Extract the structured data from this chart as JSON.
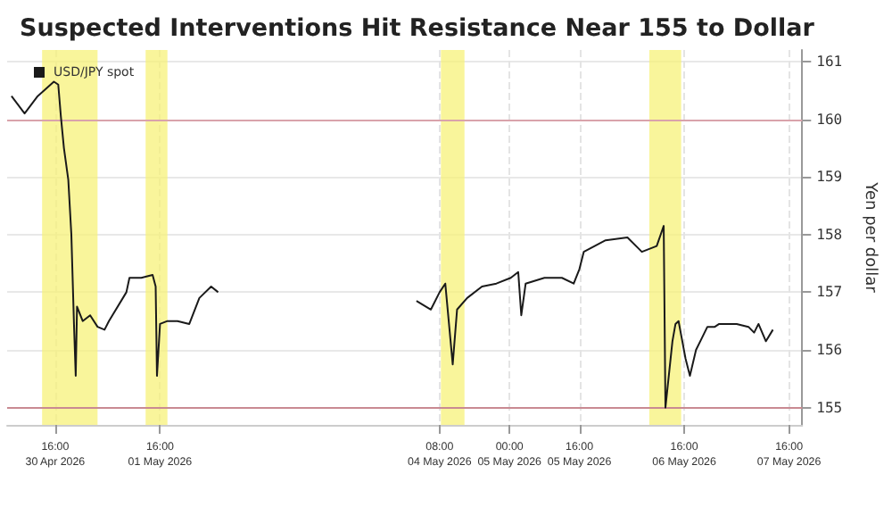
{
  "chart_data": {
    "type": "line",
    "title": "Suspected Interventions Hit Resistance Near 155 to Dollar",
    "ylabel": "Yen per dollar",
    "legend": "top left",
    "grid": true,
    "marker": "none",
    "line_style": "solid",
    "xlim": [
      "2026-04-30T05:00",
      "2026-05-07T19:00"
    ],
    "ylim": [
      154.7,
      161.2
    ],
    "yticks": [
      155,
      156,
      157,
      158,
      159,
      160,
      161
    ],
    "xticks": [
      {
        "value": "2026-04-30T16:00",
        "label": "16:00\n30 Apr 2026"
      },
      {
        "value": "2026-05-01T16:00",
        "label": "16:00\n01 May 2026"
      },
      {
        "value": "2026-05-04T08:00",
        "label": "08:00\n04 May 2026"
      },
      {
        "value": "2026-05-05T00:00",
        "label": "00:00\n05 May 2026"
      },
      {
        "value": "2026-05-05T16:00",
        "label": "16:00\n05 May 2026"
      },
      {
        "value": "2026-05-06T16:00",
        "label": "16:00\n06 May 2026"
      },
      {
        "value": "2026-05-07T16:00",
        "label": "16:00\n07 May 2026"
      }
    ],
    "series": [
      {
        "name": "USD/JPY spot",
        "color": "#1a1a1a",
        "x": [
          "2026-04-30T06:00",
          "2026-04-30T09:00",
          "2026-04-30T12:00",
          "2026-04-30T15:42",
          "2026-04-30T16:42",
          "2026-04-30T17:18",
          "2026-04-30T18:00",
          "2026-04-30T19:00",
          "2026-04-30T19:42",
          "2026-04-30T20:18",
          "2026-04-30T20:42",
          "2026-04-30T21:00",
          "2026-04-30T22:18",
          "2026-05-01T00:00",
          "2026-05-01T01:42",
          "2026-05-01T03:18",
          "2026-05-01T04:18",
          "2026-05-01T08:18",
          "2026-05-01T09:00",
          "2026-05-01T11:42",
          "2026-05-01T14:18",
          "2026-05-01T15:00",
          "2026-05-01T15:18",
          "2026-05-01T16:00",
          "2026-05-01T17:42",
          "2026-05-01T20:00",
          "2026-05-01T22:42",
          "2026-05-02T01:00",
          "2026-05-02T03:42",
          "2026-05-02T05:18",
          "2026-05-03T12:00",
          "2026-05-04T02:42",
          "2026-05-04T06:00",
          "2026-05-04T08:00",
          "2026-05-04T09:18",
          "2026-05-04T11:00",
          "2026-05-04T12:00",
          "2026-05-04T14:18",
          "2026-05-04T17:42",
          "2026-05-04T21:00",
          "2026-05-05T00:18",
          "2026-05-05T02:00",
          "2026-05-05T02:42",
          "2026-05-05T03:42",
          "2026-05-05T08:00",
          "2026-05-05T12:00",
          "2026-05-05T14:42",
          "2026-05-05T16:00",
          "2026-05-05T17:00",
          "2026-05-05T22:00",
          "2026-05-06T03:00",
          "2026-05-06T06:18",
          "2026-05-06T09:42",
          "2026-05-06T11:18",
          "2026-05-06T11:42",
          "2026-05-06T13:18",
          "2026-05-06T14:00",
          "2026-05-06T14:42",
          "2026-05-06T16:18",
          "2026-05-06T17:18",
          "2026-05-06T18:42",
          "2026-05-06T20:00",
          "2026-05-06T21:18",
          "2026-05-06T23:00",
          "2026-05-07T00:00",
          "2026-05-07T04:00",
          "2026-05-07T06:42",
          "2026-05-07T08:00",
          "2026-05-07T09:00",
          "2026-05-07T10:42",
          "2026-05-07T12:18"
        ],
        "values": [
          160.4,
          160.1,
          160.4,
          160.65,
          160.6,
          160.05,
          159.5,
          158.95,
          158.0,
          156.45,
          155.55,
          156.75,
          156.5,
          156.6,
          156.4,
          156.35,
          156.5,
          157.0,
          157.25,
          157.25,
          157.3,
          157.1,
          155.55,
          156.45,
          156.5,
          156.5,
          156.45,
          156.9,
          157.1,
          157.0,
          null,
          156.85,
          156.7,
          157.0,
          157.15,
          155.75,
          156.7,
          156.9,
          157.1,
          157.15,
          157.25,
          157.35,
          156.6,
          157.15,
          157.25,
          157.25,
          157.15,
          157.4,
          157.7,
          157.9,
          157.95,
          157.7,
          157.8,
          158.15,
          155.0,
          156.15,
          156.45,
          156.5,
          155.85,
          155.55,
          156.0,
          156.2,
          156.4,
          156.4,
          156.45,
          156.45,
          156.4,
          156.3,
          156.45,
          156.15,
          156.35
        ]
      }
    ],
    "ref_lines": [
      {
        "axis": "y",
        "value": 160,
        "color": "#d9a3ab"
      },
      {
        "axis": "y",
        "value": 155,
        "color": "#c98a92"
      }
    ],
    "bands": [
      {
        "axis": "x",
        "from": "2026-04-30T13:00",
        "to": "2026-05-01T01:42",
        "color": "#f7f27a"
      },
      {
        "axis": "x",
        "from": "2026-05-01T12:42",
        "to": "2026-05-01T17:42",
        "color": "#f7f27a"
      },
      {
        "axis": "x",
        "from": "2026-05-04T08:18",
        "to": "2026-05-04T13:42",
        "color": "#f7f27a"
      },
      {
        "axis": "x",
        "from": "2026-05-06T08:00",
        "to": "2026-05-06T15:18",
        "color": "#f7f27a"
      }
    ]
  }
}
